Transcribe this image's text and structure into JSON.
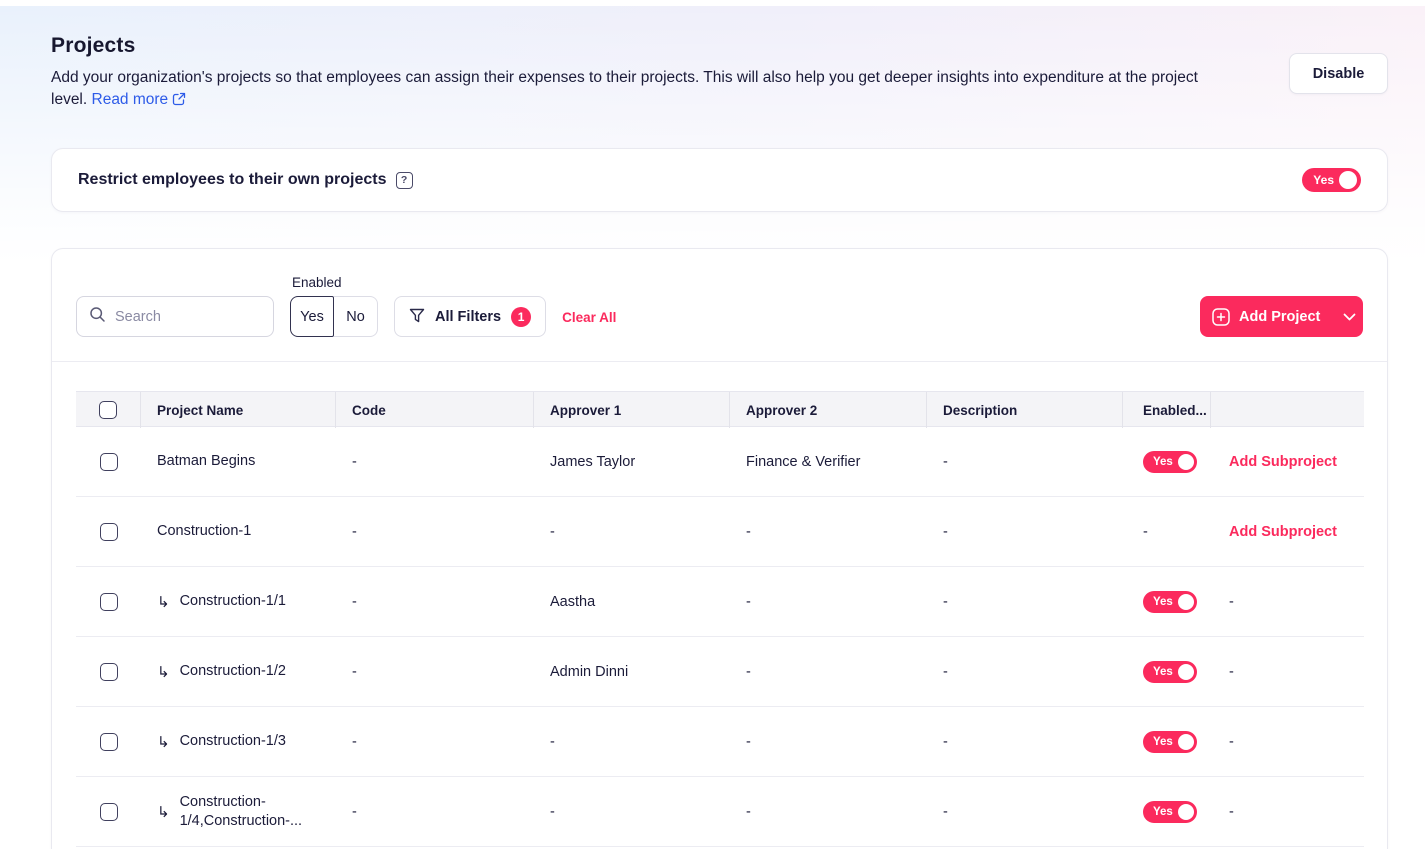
{
  "page": {
    "title": "Projects",
    "description": "Add your organization's projects so that employees can assign their expenses to their projects. This will also help you get deeper insights into expenditure at the project level.",
    "read_more_label": "Read more",
    "disable_button_label": "Disable"
  },
  "restrict_setting": {
    "label": "Restrict employees to their own projects",
    "toggle_value": "Yes",
    "toggle_state": "on"
  },
  "filters": {
    "search_placeholder": "Search",
    "enabled_filter_label": "Enabled",
    "enabled_options": [
      "Yes",
      "No"
    ],
    "enabled_selected": "Yes",
    "all_filters_label": "All Filters",
    "active_filter_count": "1",
    "clear_all_label": "Clear All",
    "add_project_label": "Add Project"
  },
  "table": {
    "columns": [
      "Project Name",
      "Code",
      "Approver 1",
      "Approver 2",
      "Description",
      "Enabled..."
    ],
    "rows": [
      {
        "name": "Batman Begins",
        "subproject": false,
        "code": "-",
        "approver1": "James Taylor",
        "approver2": "Finance & Verifier",
        "description": "-",
        "enabled": "Yes",
        "action": "Add Subproject"
      },
      {
        "name": "Construction-1",
        "subproject": false,
        "code": "-",
        "approver1": "-",
        "approver2": "-",
        "description": "-",
        "enabled": "-",
        "action": "Add Subproject"
      },
      {
        "name": "Construction-1/1",
        "subproject": true,
        "code": "-",
        "approver1": "Aastha",
        "approver2": "-",
        "description": "-",
        "enabled": "Yes",
        "action": "-"
      },
      {
        "name": "Construction-1/2",
        "subproject": true,
        "code": "-",
        "approver1": "Admin Dinni",
        "approver2": "-",
        "description": "-",
        "enabled": "Yes",
        "action": "-"
      },
      {
        "name": "Construction-1/3",
        "subproject": true,
        "code": "-",
        "approver1": "-",
        "approver2": "-",
        "description": "-",
        "enabled": "Yes",
        "action": "-"
      },
      {
        "name": "Construction-1/4,Construction-...",
        "subproject": true,
        "code": "-",
        "approver1": "-",
        "approver2": "-",
        "description": "-",
        "enabled": "Yes",
        "action": "-"
      }
    ]
  },
  "icons": {
    "search": "magnifier",
    "all_filters": "funnel",
    "add_project": "plus-in-square",
    "add_project_more": "chevron-down",
    "restrict_help": "question-mark",
    "read_more": "external-link",
    "subproject": "corner-down-right-arrow"
  },
  "colors": {
    "accent_pink": "#FB2A5D",
    "link_blue": "#2D5BE8",
    "text_dark": "#1B1B39",
    "table_header_bg": "#F4F4F7"
  }
}
